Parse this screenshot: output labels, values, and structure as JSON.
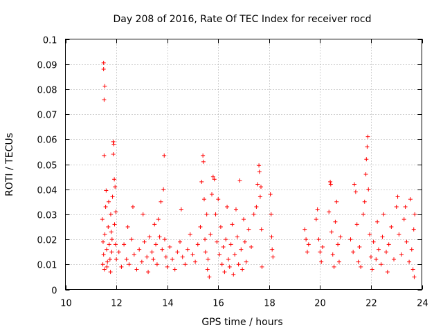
{
  "chart_data": {
    "type": "scatter",
    "title": "Day 208 of 2016, Rate Of TEC Index for receiver rocd",
    "xlabel": "GPS time / hours",
    "ylabel": "ROTI / TECUs",
    "xlim": [
      10,
      24
    ],
    "ylim": [
      0,
      0.1
    ],
    "xticks": [
      10,
      12,
      14,
      16,
      18,
      20,
      22,
      24
    ],
    "yticks": [
      0,
      0.01,
      0.02,
      0.03,
      0.04,
      0.05,
      0.06,
      0.07,
      0.08,
      0.09,
      0.1
    ],
    "xtick_labels": [
      "10",
      "12",
      "14",
      "16",
      "18",
      "20",
      "22",
      "24"
    ],
    "ytick_labels": [
      "0",
      "0.01",
      "0.02",
      "0.03",
      "0.04",
      "0.05",
      "0.06",
      "0.07",
      "0.08",
      "0.09",
      "0.1"
    ],
    "grid": true,
    "marker": "+",
    "series": [
      {
        "name": "ROTI",
        "color": "#ff0000",
        "points": [
          [
            11.5,
            0.0905
          ],
          [
            11.5,
            0.088
          ],
          [
            11.55,
            0.0812
          ],
          [
            11.52,
            0.0758
          ],
          [
            11.52,
            0.0535
          ],
          [
            11.45,
            0.028
          ],
          [
            11.48,
            0.019
          ],
          [
            11.5,
            0.014
          ],
          [
            11.55,
            0.022
          ],
          [
            11.58,
            0.033
          ],
          [
            11.6,
            0.0395
          ],
          [
            11.62,
            0.016
          ],
          [
            11.65,
            0.011
          ],
          [
            11.68,
            0.025
          ],
          [
            11.7,
            0.035
          ],
          [
            11.72,
            0.018
          ],
          [
            11.75,
            0.012
          ],
          [
            11.78,
            0.03
          ],
          [
            11.8,
            0.023
          ],
          [
            11.82,
            0.015
          ],
          [
            11.85,
            0.037
          ],
          [
            11.88,
            0.059
          ],
          [
            11.9,
            0.058
          ],
          [
            11.88,
            0.054
          ],
          [
            11.92,
            0.044
          ],
          [
            11.95,
            0.041
          ],
          [
            11.93,
            0.026
          ],
          [
            11.97,
            0.018
          ],
          [
            12.0,
            0.012
          ],
          [
            11.47,
            0.01
          ],
          [
            11.53,
            0.008
          ],
          [
            11.63,
            0.009
          ],
          [
            11.77,
            0.007
          ],
          [
            11.83,
            0.02
          ],
          [
            11.98,
            0.031
          ],
          [
            12.1,
            0.015
          ],
          [
            12.2,
            0.009
          ],
          [
            12.3,
            0.018
          ],
          [
            12.4,
            0.012
          ],
          [
            12.45,
            0.025
          ],
          [
            12.5,
            0.01
          ],
          [
            12.6,
            0.02
          ],
          [
            12.65,
            0.033
          ],
          [
            12.7,
            0.014
          ],
          [
            12.8,
            0.008
          ],
          [
            12.9,
            0.016
          ],
          [
            13.0,
            0.011
          ],
          [
            13.05,
            0.03
          ],
          [
            13.1,
            0.019
          ],
          [
            13.2,
            0.013
          ],
          [
            13.25,
            0.007
          ],
          [
            13.3,
            0.021
          ],
          [
            13.4,
            0.015
          ],
          [
            13.45,
            0.012
          ],
          [
            13.5,
            0.026
          ],
          [
            13.55,
            0.018
          ],
          [
            13.6,
            0.01
          ],
          [
            13.65,
            0.028
          ],
          [
            13.7,
            0.021
          ],
          [
            13.75,
            0.035
          ],
          [
            13.8,
            0.016
          ],
          [
            13.85,
            0.04
          ],
          [
            13.88,
            0.0535
          ],
          [
            13.9,
            0.02
          ],
          [
            13.95,
            0.013
          ],
          [
            14.0,
            0.009
          ],
          [
            14.1,
            0.017
          ],
          [
            14.2,
            0.012
          ],
          [
            14.3,
            0.008
          ],
          [
            14.4,
            0.015
          ],
          [
            14.5,
            0.019
          ],
          [
            14.55,
            0.032
          ],
          [
            14.6,
            0.013
          ],
          [
            14.7,
            0.01
          ],
          [
            14.8,
            0.016
          ],
          [
            14.9,
            0.022
          ],
          [
            15.0,
            0.014
          ],
          [
            15.1,
            0.011
          ],
          [
            15.2,
            0.018
          ],
          [
            15.3,
            0.025
          ],
          [
            15.35,
            0.043
          ],
          [
            15.4,
            0.0535
          ],
          [
            15.42,
            0.051
          ],
          [
            15.45,
            0.036
          ],
          [
            15.48,
            0.02
          ],
          [
            15.5,
            0.015
          ],
          [
            15.55,
            0.03
          ],
          [
            15.58,
            0.008
          ],
          [
            15.6,
            0.012
          ],
          [
            15.65,
            0.005
          ],
          [
            15.7,
            0.022
          ],
          [
            15.75,
            0.038
          ],
          [
            15.8,
            0.045
          ],
          [
            15.85,
            0.044
          ],
          [
            15.9,
            0.03
          ],
          [
            15.95,
            0.019
          ],
          [
            16.0,
            0.036
          ],
          [
            16.05,
            0.014
          ],
          [
            16.1,
            0.025
          ],
          [
            16.15,
            0.01
          ],
          [
            16.2,
            0.017
          ],
          [
            16.25,
            0.007
          ],
          [
            16.3,
            0.02
          ],
          [
            16.35,
            0.033
          ],
          [
            16.4,
            0.012
          ],
          [
            16.45,
            0.009
          ],
          [
            16.5,
            0.018
          ],
          [
            16.55,
            0.026
          ],
          [
            16.6,
            0.006
          ],
          [
            16.65,
            0.014
          ],
          [
            16.7,
            0.032
          ],
          [
            16.75,
            0.021
          ],
          [
            16.8,
            0.01
          ],
          [
            16.85,
            0.0435
          ],
          [
            16.9,
            0.016
          ],
          [
            16.95,
            0.008
          ],
          [
            17.0,
            0.028
          ],
          [
            17.05,
            0.019
          ],
          [
            17.1,
            0.011
          ],
          [
            17.2,
            0.024
          ],
          [
            17.3,
            0.017
          ],
          [
            17.4,
            0.03
          ],
          [
            17.5,
            0.033
          ],
          [
            17.55,
            0.042
          ],
          [
            17.6,
            0.0495
          ],
          [
            17.62,
            0.047
          ],
          [
            17.65,
            0.037
          ],
          [
            17.68,
            0.041
          ],
          [
            17.7,
            0.024
          ],
          [
            17.72,
            0.009
          ],
          [
            18.05,
            0.038
          ],
          [
            18.08,
            0.03
          ],
          [
            18.1,
            0.021
          ],
          [
            18.12,
            0.016
          ],
          [
            18.15,
            0.013
          ],
          [
            19.4,
            0.024
          ],
          [
            19.45,
            0.02
          ],
          [
            19.5,
            0.015
          ],
          [
            19.55,
            0.018
          ],
          [
            19.85,
            0.028
          ],
          [
            19.9,
            0.032
          ],
          [
            19.95,
            0.02
          ],
          [
            20.0,
            0.015
          ],
          [
            20.05,
            0.011
          ],
          [
            20.1,
            0.017
          ],
          [
            20.35,
            0.031
          ],
          [
            20.4,
            0.043
          ],
          [
            20.42,
            0.042
          ],
          [
            20.45,
            0.023
          ],
          [
            20.5,
            0.014
          ],
          [
            20.55,
            0.009
          ],
          [
            20.6,
            0.027
          ],
          [
            20.65,
            0.035
          ],
          [
            20.7,
            0.018
          ],
          [
            20.75,
            0.011
          ],
          [
            20.8,
            0.021
          ],
          [
            21.2,
            0.02
          ],
          [
            21.3,
            0.015
          ],
          [
            21.35,
            0.042
          ],
          [
            21.4,
            0.039
          ],
          [
            21.45,
            0.026
          ],
          [
            21.5,
            0.011
          ],
          [
            21.55,
            0.017
          ],
          [
            21.6,
            0.009
          ],
          [
            21.7,
            0.03
          ],
          [
            21.75,
            0.035
          ],
          [
            21.8,
            0.046
          ],
          [
            21.82,
            0.052
          ],
          [
            21.85,
            0.057
          ],
          [
            21.88,
            0.061
          ],
          [
            21.9,
            0.04
          ],
          [
            21.95,
            0.022
          ],
          [
            22.0,
            0.013
          ],
          [
            22.05,
            0.008
          ],
          [
            22.1,
            0.019
          ],
          [
            22.2,
            0.012
          ],
          [
            22.25,
            0.027
          ],
          [
            22.3,
            0.016
          ],
          [
            22.4,
            0.01
          ],
          [
            22.45,
            0.021
          ],
          [
            22.5,
            0.03
          ],
          [
            22.6,
            0.015
          ],
          [
            22.65,
            0.007
          ],
          [
            22.7,
            0.018
          ],
          [
            22.8,
            0.025
          ],
          [
            22.9,
            0.012
          ],
          [
            23.0,
            0.033
          ],
          [
            23.05,
            0.037
          ],
          [
            23.1,
            0.022
          ],
          [
            23.2,
            0.014
          ],
          [
            23.3,
            0.028
          ],
          [
            23.35,
            0.033
          ],
          [
            23.4,
            0.019
          ],
          [
            23.5,
            0.011
          ],
          [
            23.55,
            0.036
          ],
          [
            23.6,
            0.016
          ],
          [
            23.65,
            0.008
          ],
          [
            23.7,
            0.005
          ],
          [
            23.72,
            0.03
          ],
          [
            23.68,
            0.024
          ]
        ]
      }
    ]
  }
}
